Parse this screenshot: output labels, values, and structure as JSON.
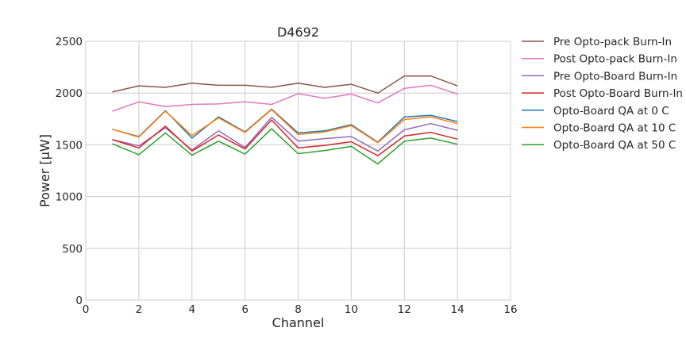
{
  "chart_data": {
    "type": "line",
    "title": "D4692",
    "xlabel": "Channel",
    "ylabel": "Power [μW]",
    "xlim": [
      0,
      16
    ],
    "ylim": [
      0,
      2500
    ],
    "xticks": [
      0,
      2,
      4,
      6,
      8,
      10,
      12,
      14,
      16
    ],
    "yticks": [
      0,
      500,
      1000,
      1500,
      2000,
      2500
    ],
    "grid": true,
    "legend_position": "outside-right",
    "x": [
      1,
      2,
      3,
      4,
      5,
      6,
      7,
      8,
      9,
      10,
      11,
      12,
      13,
      14
    ],
    "series": [
      {
        "name": "Pre Opto-pack Burn-In",
        "color": "#8c564b",
        "values": [
          2010,
          2070,
          2055,
          2095,
          2075,
          2075,
          2055,
          2095,
          2055,
          2085,
          2000,
          2165,
          2165,
          2070
        ]
      },
      {
        "name": "Post Opto-pack Burn-In",
        "color": "#e377c2",
        "values": [
          1825,
          1915,
          1870,
          1890,
          1895,
          1915,
          1890,
          1995,
          1950,
          1990,
          1905,
          2045,
          2075,
          1990
        ]
      },
      {
        "name": "Pre Opto-Board Burn-In",
        "color": "#9467bd",
        "values": [
          1550,
          1490,
          1665,
          1450,
          1635,
          1475,
          1765,
          1535,
          1560,
          1580,
          1440,
          1645,
          1705,
          1640
        ]
      },
      {
        "name": "Post Opto-Board Burn-In",
        "color": "#d62728",
        "values": [
          1550,
          1470,
          1680,
          1440,
          1595,
          1460,
          1740,
          1470,
          1495,
          1530,
          1395,
          1585,
          1620,
          1555
        ]
      },
      {
        "name": "Opto-Board QA at 0 C",
        "color": "#1f77b4",
        "values": [
          1650,
          1580,
          1830,
          1565,
          1770,
          1625,
          1845,
          1615,
          1635,
          1695,
          1525,
          1770,
          1785,
          1725
        ]
      },
      {
        "name": "Opto-Board QA at 10 C",
        "color": "#ff7f0e",
        "values": [
          1650,
          1575,
          1825,
          1590,
          1760,
          1620,
          1840,
          1600,
          1625,
          1685,
          1520,
          1745,
          1770,
          1705
        ]
      },
      {
        "name": "Opto-Board QA at 50 C",
        "color": "#2ca02c",
        "values": [
          1510,
          1405,
          1615,
          1400,
          1535,
          1410,
          1655,
          1415,
          1445,
          1485,
          1315,
          1535,
          1565,
          1505
        ]
      }
    ]
  }
}
